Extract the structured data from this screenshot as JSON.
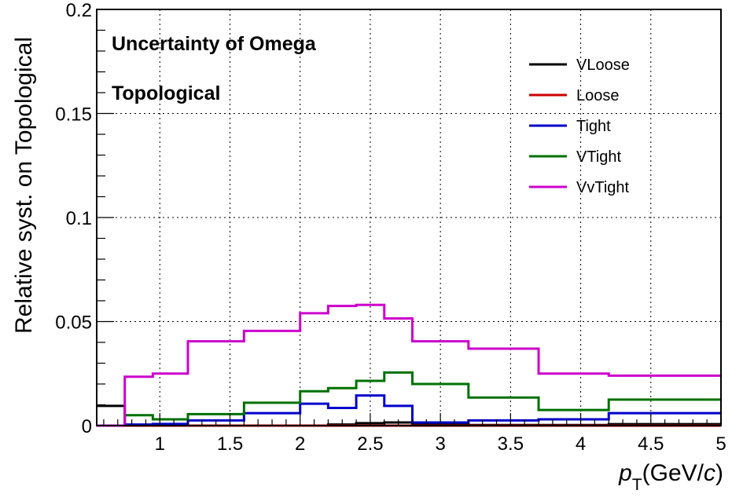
{
  "chart_data": {
    "type": "line",
    "style": "step-histogram",
    "xlabel_main": "p",
    "xlabel_sub": "T",
    "xlabel_unit_open": "(GeV/",
    "xlabel_unit_var": "c",
    "xlabel_unit_close": ")",
    "ylabel": "Relative syst. on Topological",
    "xlim": [
      0.55,
      5.0
    ],
    "ylim": [
      0,
      0.2
    ],
    "x_ticks": [
      1,
      1.5,
      2,
      2.5,
      3,
      3.5,
      4,
      4.5,
      5
    ],
    "x_tick_labels": [
      "1",
      "1.5",
      "2",
      "2.5",
      "3",
      "3.5",
      "4",
      "4.5",
      "5"
    ],
    "y_ticks": [
      0,
      0.05,
      0.1,
      0.15,
      0.2
    ],
    "y_tick_labels": [
      "0",
      "0.05",
      "0.1",
      "0.15",
      "0.2"
    ],
    "grid": true,
    "legend_position": "top-right",
    "annotations": [
      "Uncertainty of Omega",
      "Topological"
    ],
    "bin_edges": [
      0.55,
      0.75,
      0.95,
      1.2,
      1.6,
      2.0,
      2.2,
      2.4,
      2.6,
      2.8,
      3.2,
      3.7,
      4.2,
      5.0
    ],
    "series": [
      {
        "name": "VLoose",
        "color": "#000000",
        "values": [
          0.0095,
          0.0,
          0.0,
          0.0,
          0.0,
          0.0,
          0.0005,
          0.0012,
          0.0015,
          0.0005,
          0.0003,
          0.0003,
          0.0007
        ]
      },
      {
        "name": "Loose",
        "color": "#cc0000",
        "values": [
          0.0,
          0.0,
          0.0,
          0.0,
          0.0,
          0.0,
          0.0,
          0.0,
          0.0,
          0.0,
          0.0,
          0.0,
          0.0
        ]
      },
      {
        "name": "Tight",
        "color": "#0000cc",
        "values": [
          0.0,
          0.0005,
          0.0008,
          0.0025,
          0.006,
          0.0105,
          0.0085,
          0.0145,
          0.0095,
          0.0015,
          0.0025,
          0.003,
          0.006
        ]
      },
      {
        "name": "VTight",
        "color": "#007000",
        "values": [
          0.0,
          0.005,
          0.003,
          0.0055,
          0.011,
          0.0165,
          0.018,
          0.0215,
          0.0255,
          0.02,
          0.0135,
          0.0075,
          0.0125
        ]
      },
      {
        "name": "VvTight",
        "color": "#cc00cc",
        "values": [
          0.0,
          0.0235,
          0.025,
          0.0405,
          0.0455,
          0.054,
          0.0575,
          0.058,
          0.0515,
          0.0405,
          0.037,
          0.025,
          0.024
        ]
      }
    ]
  }
}
